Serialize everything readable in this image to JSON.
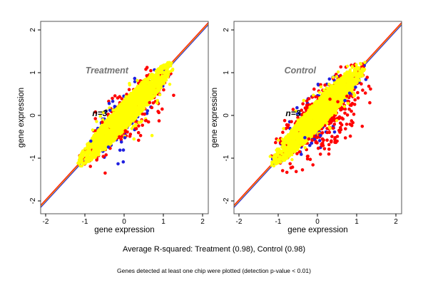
{
  "figure": {
    "background": "#ffffff",
    "captions": {
      "rsq": "Average R-squared: Treatment (0.98), Control (0.98)",
      "note": "Genes detected at least one chip were plotted (detection p-value < 0.01)"
    }
  },
  "chart_data": [
    {
      "type": "scatter",
      "title": "Treatment",
      "title_color": "#737373",
      "annotation": "n=3",
      "xlabel": "gene expression",
      "ylabel": "gene expression",
      "xlim": [
        -2.15,
        2.2
      ],
      "ylim": [
        -2.3,
        2.2
      ],
      "xticks": [
        -2,
        -1,
        0,
        1,
        2
      ],
      "yticks": [
        -2,
        -1,
        0,
        1,
        2
      ],
      "grid": false,
      "legend": "none",
      "r_squared": 0.98,
      "identity_lines": [
        {
          "name": "fit-line-red",
          "color": "#ff0000",
          "offset": 0.026
        },
        {
          "name": "fit-line-blue",
          "color": "#2020e0",
          "offset": -0.026
        },
        {
          "name": "fit-line-orange",
          "color": "#ef9e1c",
          "offset": 0
        }
      ],
      "cloud": {
        "t_min": -1.18,
        "t_max": 1.24,
        "mid": 0.05,
        "half": 1.22,
        "w_min": 0.02,
        "w_max": 0.16
      },
      "series": [
        {
          "name": "replicate-pair-blue",
          "color": "#2020e0",
          "n": 150,
          "spread": 1.32,
          "below_bias": 0.08,
          "seed": 101
        },
        {
          "name": "replicate-pair-red",
          "color": "#ff0000",
          "n": 330,
          "spread": 1.16,
          "below_bias": 0.1,
          "seed": 202
        },
        {
          "name": "replicate-pair-yellow",
          "color": "#ffff00",
          "n": 1900,
          "spread": 1.0,
          "below_bias": 0,
          "seed": 303
        }
      ],
      "outliers": [
        {
          "x": -0.38,
          "y": 0.28,
          "c": "#2020e0"
        },
        {
          "x": -0.29,
          "y": 0.33,
          "c": "#2020e0"
        },
        {
          "x": -0.24,
          "y": 0.21,
          "c": "#2020e0"
        },
        {
          "x": -0.36,
          "y": 0.12,
          "c": "#2020e0"
        },
        {
          "x": -0.46,
          "y": 0.1,
          "c": "#2020e0"
        },
        {
          "x": -0.07,
          "y": -0.62,
          "c": "#2020e0"
        },
        {
          "x": -0.4,
          "y": -0.74,
          "c": "#2020e0"
        },
        {
          "x": 0.02,
          "y": -0.52,
          "c": "#2020e0"
        },
        {
          "x": -0.85,
          "y": -0.6,
          "c": "#2020e0"
        },
        {
          "x": 0.03,
          "y": -0.36,
          "c": "#ff0000"
        },
        {
          "x": 0.16,
          "y": -0.44,
          "c": "#ff0000"
        },
        {
          "x": 0.31,
          "y": -0.31,
          "c": "#ff0000"
        },
        {
          "x": -0.12,
          "y": -0.5,
          "c": "#ff0000"
        },
        {
          "x": 0.56,
          "y": -0.12,
          "c": "#ff0000"
        },
        {
          "x": 0.42,
          "y": -0.47,
          "c": "#ff0000"
        },
        {
          "x": -0.56,
          "y": -0.16,
          "c": "#ff0000"
        },
        {
          "x": -0.73,
          "y": 0.08,
          "c": "#ff0000"
        },
        {
          "x": 0.65,
          "y": 0.3,
          "c": "#ff0000"
        },
        {
          "x": -0.3,
          "y": 0.4,
          "c": "#ff0000"
        },
        {
          "x": -0.53,
          "y": 0.07,
          "c": "#ffff00"
        },
        {
          "x": 0.71,
          "y": -0.47,
          "c": "#ffff00"
        },
        {
          "x": 0.25,
          "y": -0.55,
          "c": "#ffff00"
        },
        {
          "x": 0.85,
          "y": 0.35,
          "c": "#ffff00"
        }
      ]
    },
    {
      "type": "scatter",
      "title": "Control",
      "title_color": "#737373",
      "annotation": "n=3",
      "xlabel": "gene expression",
      "ylabel": "gene expression",
      "xlim": [
        -2.15,
        2.2
      ],
      "ylim": [
        -2.3,
        2.2
      ],
      "xticks": [
        -2,
        -1,
        0,
        1,
        2
      ],
      "yticks": [
        -2,
        -1,
        0,
        1,
        2
      ],
      "grid": false,
      "legend": "none",
      "r_squared": 0.98,
      "identity_lines": [
        {
          "name": "fit-line-red",
          "color": "#ff0000",
          "offset": 0.026
        },
        {
          "name": "fit-line-blue",
          "color": "#2020e0",
          "offset": -0.026
        },
        {
          "name": "fit-line-orange",
          "color": "#ef9e1c",
          "offset": 0
        }
      ],
      "cloud": {
        "t_min": -1.18,
        "t_max": 1.24,
        "mid": 0.05,
        "half": 1.22,
        "w_min": 0.02,
        "w_max": 0.16
      },
      "series": [
        {
          "name": "replicate-pair-blue",
          "color": "#2020e0",
          "n": 140,
          "spread": 1.35,
          "below_bias": 0.12,
          "seed": 401
        },
        {
          "name": "replicate-pair-red",
          "color": "#ff0000",
          "n": 540,
          "spread": 1.28,
          "below_bias": 0.26,
          "seed": 502
        },
        {
          "name": "replicate-pair-yellow",
          "color": "#ffff00",
          "n": 1900,
          "spread": 1.0,
          "below_bias": 0,
          "seed": 603
        }
      ],
      "outliers": [
        {
          "x": 0.89,
          "y": 0.28,
          "c": "#ff0000"
        },
        {
          "x": 0.55,
          "y": -0.35,
          "c": "#ff0000"
        },
        {
          "x": 0.35,
          "y": -0.62,
          "c": "#ff0000"
        },
        {
          "x": 0.18,
          "y": -0.78,
          "c": "#ff0000"
        },
        {
          "x": 0.45,
          "y": -0.52,
          "c": "#ff0000"
        },
        {
          "x": 0.62,
          "y": -0.22,
          "c": "#ff0000"
        },
        {
          "x": 0.13,
          "y": -0.55,
          "c": "#ff0000"
        },
        {
          "x": -0.22,
          "y": -0.55,
          "c": "#ff0000"
        },
        {
          "x": 0.32,
          "y": 0.38,
          "c": "#ff0000"
        },
        {
          "x": 0.52,
          "y": 0.32,
          "c": "#ff0000"
        },
        {
          "x": -0.62,
          "y": 0.14,
          "c": "#ff0000"
        },
        {
          "x": -0.78,
          "y": -0.22,
          "c": "#ff0000"
        },
        {
          "x": 0.75,
          "y": 0.45,
          "c": "#ff0000"
        },
        {
          "x": 0.05,
          "y": -0.45,
          "c": "#ff0000"
        },
        {
          "x": 0.25,
          "y": -0.4,
          "c": "#ff0000"
        },
        {
          "x": 0.4,
          "y": -0.3,
          "c": "#ff0000"
        },
        {
          "x": 0.97,
          "y": 0.66,
          "c": "#2020e0"
        },
        {
          "x": 0.82,
          "y": 0.52,
          "c": "#2020e0"
        },
        {
          "x": -0.32,
          "y": -0.52,
          "c": "#2020e0"
        },
        {
          "x": 0.08,
          "y": -0.47,
          "c": "#2020e0"
        },
        {
          "x": -0.52,
          "y": 0.18,
          "c": "#2020e0"
        },
        {
          "x": 0.7,
          "y": 0.35,
          "c": "#2020e0"
        },
        {
          "x": -0.15,
          "y": -0.65,
          "c": "#2020e0"
        },
        {
          "x": -0.55,
          "y": 0.1,
          "c": "#ffff00"
        },
        {
          "x": 0.28,
          "y": 0.62,
          "c": "#ffff00"
        },
        {
          "x": -0.35,
          "y": 0.35,
          "c": "#ffff00"
        },
        {
          "x": 0.95,
          "y": 0.8,
          "c": "#ffff00"
        }
      ]
    }
  ]
}
